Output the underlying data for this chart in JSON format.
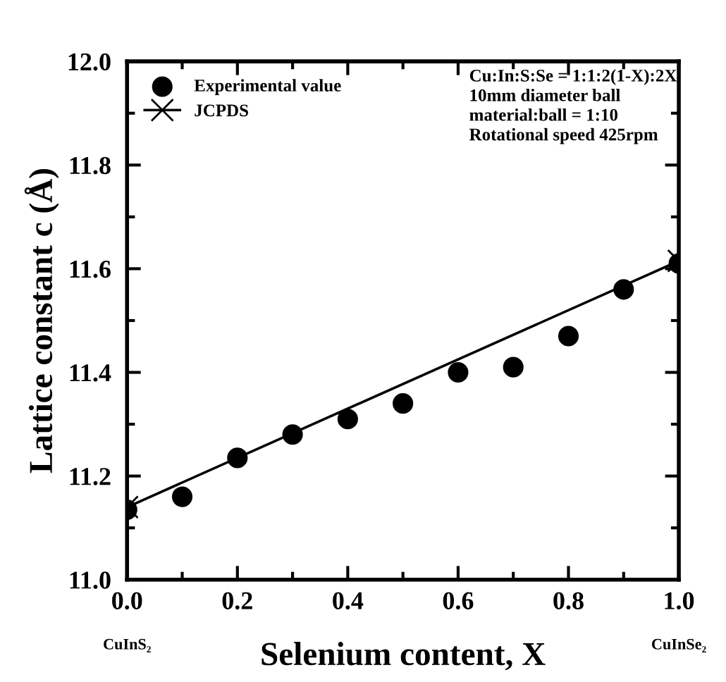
{
  "chart_data": {
    "type": "scatter",
    "xlabel": "Selenium content, X",
    "ylabel": "Lattice constant c (Å)",
    "xlim": [
      0.0,
      1.0
    ],
    "xticks": [
      {
        "value": 0,
        "label": "0.0"
      },
      0.2,
      0.4,
      0.6,
      0.8,
      {
        "value": 1,
        "label": "1.0"
      }
    ],
    "ylim": [
      11.0,
      12.0
    ],
    "yticks": [
      {
        "value": 11,
        "label": "11.0"
      },
      11.2,
      11.4,
      11.6,
      11.8,
      {
        "value": 12,
        "label": "12.0"
      }
    ],
    "grid": false,
    "legend": "top left",
    "series": [
      {
        "name": "Experimental value",
        "marker": "circle",
        "color": "#000000",
        "x": [
          0.0,
          0.1,
          0.2,
          0.3,
          0.4,
          0.5,
          0.6,
          0.7,
          0.8,
          0.9,
          1.0
        ],
        "values": [
          11.135,
          11.16,
          11.235,
          11.28,
          11.31,
          11.34,
          11.4,
          11.41,
          11.47,
          11.56,
          11.61
        ]
      },
      {
        "name": "JCPDS",
        "type": "line",
        "marker": "cross",
        "line_style": "solid",
        "color": "#000000",
        "x": [
          0.0,
          1.0
        ],
        "values": [
          11.14,
          11.615
        ]
      }
    ],
    "annotations": [
      "CuInS₂",
      "CuInSe₂",
      "Cu:In:S:Se = 1:1:2(1-X):2X\n10mm diameter ball\nmaterial:ball = 1:10\nRotational speed 425rpm"
    ]
  }
}
